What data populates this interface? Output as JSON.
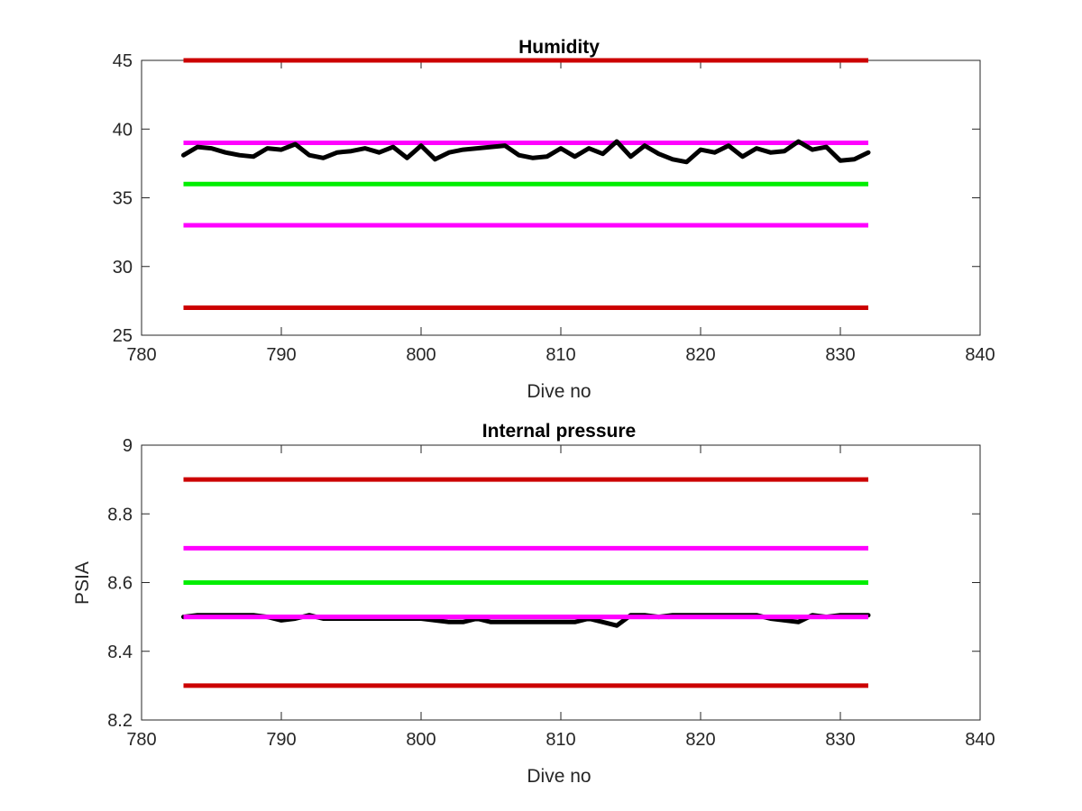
{
  "chart_data": [
    {
      "type": "line",
      "title": "Humidity",
      "xlabel": "Dive no",
      "ylabel": "",
      "xlim": [
        780,
        840
      ],
      "ylim": [
        25,
        45
      ],
      "xticks": [
        780,
        790,
        800,
        810,
        820,
        830,
        840
      ],
      "yticks": [
        25,
        30,
        35,
        40,
        45
      ],
      "grid": false,
      "x": [
        783,
        784,
        785,
        786,
        787,
        788,
        789,
        790,
        791,
        792,
        793,
        794,
        795,
        796,
        797,
        798,
        799,
        800,
        801,
        802,
        803,
        804,
        805,
        806,
        807,
        808,
        809,
        810,
        811,
        812,
        813,
        814,
        815,
        816,
        817,
        818,
        819,
        820,
        821,
        822,
        823,
        824,
        825,
        826,
        827,
        828,
        829,
        830,
        831,
        832
      ],
      "series": [
        {
          "color": "#000000",
          "values": [
            38.1,
            38.7,
            38.6,
            38.3,
            38.1,
            38.0,
            38.6,
            38.5,
            38.9,
            38.1,
            37.9,
            38.3,
            38.4,
            38.6,
            38.3,
            38.7,
            37.9,
            38.8,
            37.8,
            38.3,
            38.5,
            38.6,
            38.7,
            38.8,
            38.1,
            37.9,
            38.0,
            38.6,
            38.0,
            38.6,
            38.2,
            39.1,
            38.0,
            38.8,
            38.2,
            37.8,
            37.6,
            38.5,
            38.3,
            38.8,
            38.0,
            38.6,
            38.3,
            38.4,
            39.1,
            38.5,
            38.7,
            37.7,
            37.8,
            38.3
          ]
        }
      ],
      "reference_lines": [
        {
          "y": 45,
          "x_range": [
            783,
            832
          ],
          "color": "#cc0000"
        },
        {
          "y": 39,
          "x_range": [
            783,
            832
          ],
          "color": "#ff00ff"
        },
        {
          "y": 36,
          "x_range": [
            783,
            832
          ],
          "color": "#00ee00"
        },
        {
          "y": 33,
          "x_range": [
            783,
            832
          ],
          "color": "#ff00ff"
        },
        {
          "y": 27,
          "x_range": [
            783,
            832
          ],
          "color": "#cc0000"
        }
      ]
    },
    {
      "type": "line",
      "title": "Internal pressure",
      "xlabel": "Dive no",
      "ylabel": "PSIA",
      "xlim": [
        780,
        840
      ],
      "ylim": [
        8.2,
        9
      ],
      "xticks": [
        780,
        790,
        800,
        810,
        820,
        830,
        840
      ],
      "yticks": [
        8.2,
        8.4,
        8.6,
        8.8,
        9
      ],
      "grid": false,
      "x": [
        783,
        784,
        785,
        786,
        787,
        788,
        789,
        790,
        791,
        792,
        793,
        794,
        795,
        796,
        797,
        798,
        799,
        800,
        801,
        802,
        803,
        804,
        805,
        806,
        807,
        808,
        809,
        810,
        811,
        812,
        813,
        814,
        815,
        816,
        817,
        818,
        819,
        820,
        821,
        822,
        823,
        824,
        825,
        826,
        827,
        828,
        829,
        830,
        831,
        832
      ],
      "series": [
        {
          "color": "#000000",
          "values": [
            8.5,
            8.505,
            8.505,
            8.505,
            8.505,
            8.505,
            8.5,
            8.49,
            8.495,
            8.505,
            8.495,
            8.495,
            8.495,
            8.495,
            8.495,
            8.495,
            8.495,
            8.495,
            8.49,
            8.485,
            8.485,
            8.495,
            8.485,
            8.485,
            8.485,
            8.485,
            8.485,
            8.485,
            8.485,
            8.495,
            8.485,
            8.475,
            8.505,
            8.505,
            8.5,
            8.505,
            8.505,
            8.505,
            8.505,
            8.505,
            8.505,
            8.505,
            8.495,
            8.49,
            8.485,
            8.505,
            8.5,
            8.505,
            8.505,
            8.505
          ]
        }
      ],
      "reference_lines": [
        {
          "y": 8.9,
          "x_range": [
            783,
            832
          ],
          "color": "#cc0000"
        },
        {
          "y": 8.7,
          "x_range": [
            783,
            832
          ],
          "color": "#ff00ff"
        },
        {
          "y": 8.6,
          "x_range": [
            783,
            832
          ],
          "color": "#00ee00"
        },
        {
          "y": 8.5,
          "x_range": [
            783,
            832
          ],
          "color": "#ff00ff"
        },
        {
          "y": 8.3,
          "x_range": [
            783,
            832
          ],
          "color": "#cc0000"
        }
      ]
    }
  ]
}
